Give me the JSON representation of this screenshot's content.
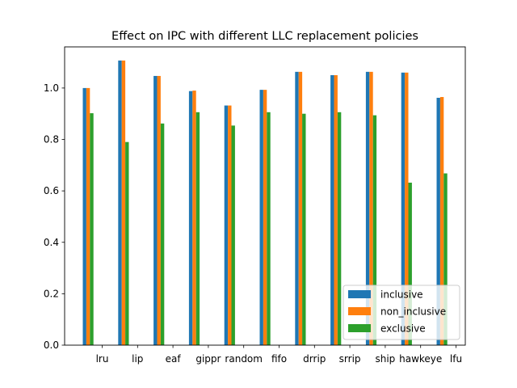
{
  "chart_data": {
    "type": "bar",
    "title": "Effect on IPC with different LLC replacement policies",
    "xlabel": "",
    "ylabel": "",
    "categories": [
      "lru",
      "lip",
      "eaf",
      "gippr",
      "random",
      "fifo",
      "drrip",
      "srrip",
      "ship",
      "hawkeye",
      "lfu"
    ],
    "series": [
      {
        "name": "inclusive",
        "color": "#1f77b4",
        "values": [
          1.0,
          1.107,
          1.047,
          0.988,
          0.932,
          0.993,
          1.063,
          1.05,
          1.063,
          1.06,
          0.962
        ]
      },
      {
        "name": "non_inclusive",
        "color": "#ff7f0e",
        "values": [
          1.0,
          1.107,
          1.047,
          0.99,
          0.932,
          0.993,
          1.063,
          1.05,
          1.063,
          1.06,
          0.965
        ]
      },
      {
        "name": "exclusive",
        "color": "#2ca02c",
        "values": [
          0.902,
          0.79,
          0.862,
          0.906,
          0.854,
          0.906,
          0.9,
          0.906,
          0.894,
          0.632,
          0.668
        ]
      }
    ],
    "ylim": [
      0,
      1.16
    ],
    "yticks": [
      "0.0",
      "0.2",
      "0.4",
      "0.6",
      "0.8",
      "1.0"
    ],
    "legend": "lower-right",
    "grid": false
  }
}
